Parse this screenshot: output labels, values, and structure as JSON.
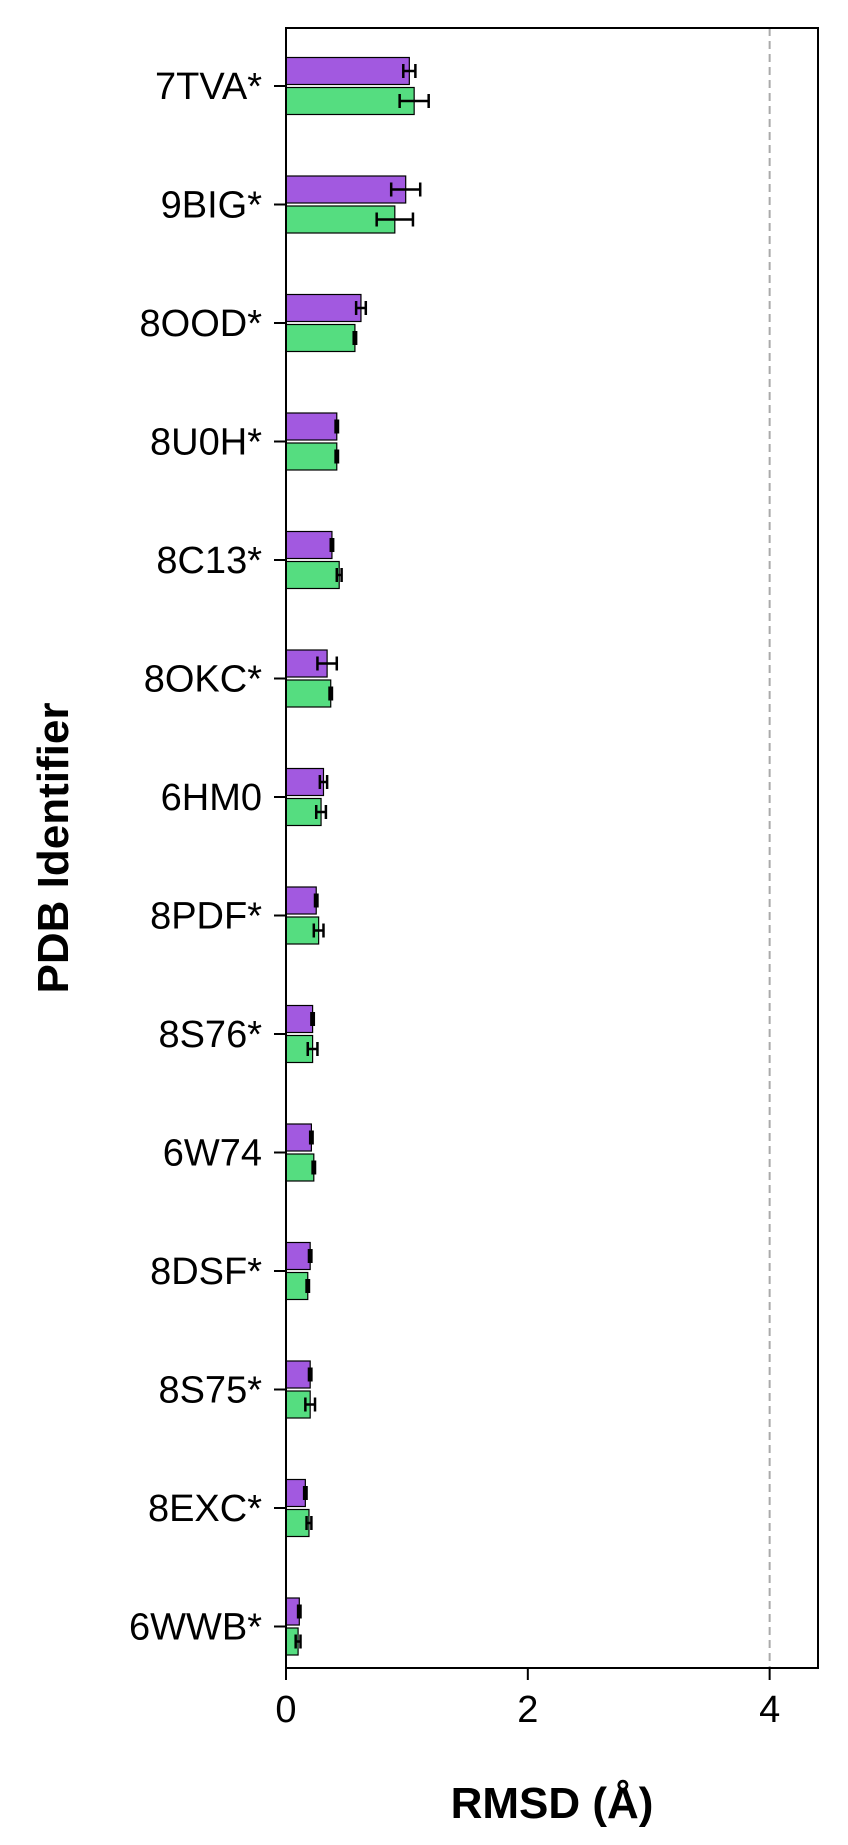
{
  "chart_data": {
    "type": "bar",
    "orientation": "horizontal",
    "title": "",
    "xlabel": "RMSD (Å)",
    "ylabel": "PDB Identifier",
    "xlim": [
      0,
      4.4
    ],
    "xticks": [
      0,
      2,
      4
    ],
    "grid": false,
    "reference_line": {
      "x": 4,
      "style": "dashed",
      "color": "#aaaaaa"
    },
    "categories": [
      "7TVA*",
      "9BIG*",
      "8OOD*",
      "8U0H*",
      "8C13*",
      "8OKC*",
      "6HM0",
      "8PDF*",
      "8S76*",
      "6W74",
      "8DSF*",
      "8S75*",
      "8EXC*",
      "6WWB*"
    ],
    "series": [
      {
        "color": "#a259e0",
        "values": [
          1.02,
          0.99,
          0.62,
          0.42,
          0.38,
          0.34,
          0.31,
          0.25,
          0.22,
          0.21,
          0.2,
          0.2,
          0.16,
          0.11
        ],
        "errors": [
          0.05,
          0.12,
          0.04,
          0.01,
          0.01,
          0.08,
          0.03,
          0.01,
          0.01,
          0.01,
          0.01,
          0.01,
          0.01,
          0.01
        ]
      },
      {
        "color": "#55dd80",
        "values": [
          1.06,
          0.9,
          0.57,
          0.42,
          0.44,
          0.37,
          0.29,
          0.27,
          0.22,
          0.23,
          0.18,
          0.2,
          0.19,
          0.1
        ],
        "errors": [
          0.12,
          0.15,
          0.01,
          0.01,
          0.02,
          0.01,
          0.04,
          0.04,
          0.04,
          0.01,
          0.01,
          0.04,
          0.02,
          0.02
        ]
      }
    ]
  }
}
